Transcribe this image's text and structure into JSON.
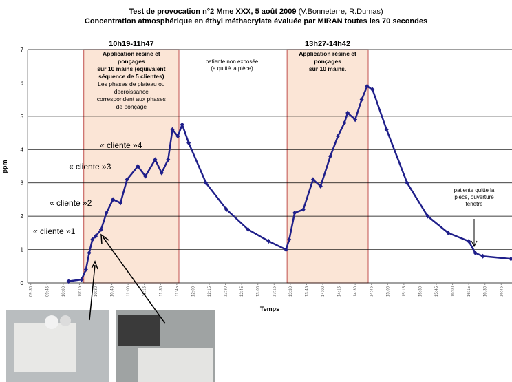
{
  "chart_data": {
    "type": "scatter-line",
    "title": "Test de provocation n°2 Mme XXX,  5 août 2009",
    "title_note": "(V.Bonneterre, R.Dumas)",
    "subtitle": "Concentration atmosphérique en éthyl méthacrylate évaluée par MIRAN toutes les 70 secondes",
    "y_label": "ppm",
    "x_label": "Temps",
    "color": "#1f1f8a",
    "grid": true,
    "ylim": [
      0,
      7
    ],
    "yticks": [
      0,
      1,
      2,
      3,
      4,
      5,
      6,
      7
    ],
    "xlim": [
      567,
      1015
    ],
    "xticks": [
      {
        "value": 570,
        "label": "09:30"
      },
      {
        "value": 585,
        "label": "09:45"
      },
      {
        "value": 600,
        "label": "10:00"
      },
      {
        "value": 615,
        "label": "10:15"
      },
      {
        "value": 630,
        "label": "10:30"
      },
      {
        "value": 645,
        "label": "10:45"
      },
      {
        "value": 660,
        "label": "11:00"
      },
      {
        "value": 675,
        "label": "11:15"
      },
      {
        "value": 690,
        "label": "11:30"
      },
      {
        "value": 705,
        "label": "11:45"
      },
      {
        "value": 720,
        "label": "12:00"
      },
      {
        "value": 735,
        "label": "12:15"
      },
      {
        "value": 750,
        "label": "12:30"
      },
      {
        "value": 765,
        "label": "12:45"
      },
      {
        "value": 780,
        "label": "13:00"
      },
      {
        "value": 795,
        "label": "13:15"
      },
      {
        "value": 810,
        "label": "13:30"
      },
      {
        "value": 825,
        "label": "13:45"
      },
      {
        "value": 840,
        "label": "14:00"
      },
      {
        "value": 855,
        "label": "14:15"
      },
      {
        "value": 870,
        "label": "14:30"
      },
      {
        "value": 885,
        "label": "14:45"
      },
      {
        "value": 900,
        "label": "15:00"
      },
      {
        "value": 915,
        "label": "15:15"
      },
      {
        "value": 930,
        "label": "15:30"
      },
      {
        "value": 945,
        "label": "15:45"
      },
      {
        "value": 960,
        "label": "16:00"
      },
      {
        "value": 975,
        "label": "16:15"
      },
      {
        "value": 990,
        "label": "16:30"
      },
      {
        "value": 1005,
        "label": "16:45"
      }
    ],
    "x": [
      605,
      617,
      621,
      624,
      627,
      630,
      635,
      640,
      646,
      653,
      659,
      669,
      676,
      685,
      691,
      697,
      701,
      706,
      710,
      716,
      732,
      751,
      771,
      790,
      806,
      809,
      814,
      822,
      831,
      838,
      847,
      854,
      860,
      863,
      870,
      876,
      881,
      886,
      899,
      918,
      937,
      956,
      975,
      981,
      988,
      1014
    ],
    "values": [
      0.05,
      0.1,
      0.4,
      0.9,
      1.3,
      1.4,
      1.6,
      2.1,
      2.5,
      2.4,
      3.1,
      3.5,
      3.2,
      3.7,
      3.3,
      3.7,
      4.6,
      4.4,
      4.75,
      4.2,
      3.0,
      2.2,
      1.6,
      1.25,
      1.0,
      1.3,
      2.1,
      2.2,
      3.1,
      2.9,
      3.8,
      4.4,
      4.8,
      5.1,
      4.9,
      5.5,
      5.9,
      5.8,
      4.6,
      3.0,
      2.0,
      1.5,
      1.25,
      0.9,
      0.8,
      0.72
    ],
    "spans": [
      {
        "label": "10h19-11h47",
        "start": 619,
        "end": 707,
        "lines": [
          "Application résine et",
          "ponçages",
          "sur 10 mains (équivalent",
          "séquence de 5 clientes)",
          "Les phases de plateau ou",
          "decroissance",
          "correspondent aux phases",
          "de ponçage"
        ]
      },
      {
        "label": "13h27-14h42",
        "start": 807,
        "end": 882,
        "lines": [
          "Application résine et",
          "ponçages",
          "sur 10 mains."
        ]
      }
    ],
    "annotations": [
      [
        "patiente non exposée",
        "(a quitté la pièce)"
      ],
      [
        "patiente quitte la",
        "pièce, ouverture",
        "fenêtre"
      ]
    ],
    "clients": [
      "« cliente »1",
      "« cliente »2",
      "« cliente »3",
      "« cliente »4"
    ]
  }
}
